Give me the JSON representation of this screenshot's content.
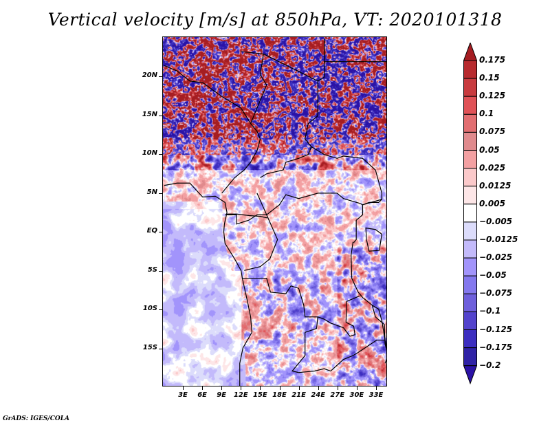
{
  "title": "Vertical velocity [m/s] at 850hPa, VT: 2020101318",
  "footer": "GrADS: IGES/COLA",
  "map": {
    "region": "Central Africa",
    "lon_range": [
      0,
      35
    ],
    "lat_range": [
      -20,
      25
    ],
    "y_axis_labels": [
      {
        "label": "20N",
        "lat": 20
      },
      {
        "label": "15N",
        "lat": 15
      },
      {
        "label": "10N",
        "lat": 10
      },
      {
        "label": "5N",
        "lat": 5
      },
      {
        "label": "EQ",
        "lat": 0
      },
      {
        "label": "5S",
        "lat": -5
      },
      {
        "label": "10S",
        "lat": -10
      },
      {
        "label": "15S",
        "lat": -15
      }
    ],
    "x_axis_labels": [
      {
        "label": "3E",
        "lon": 3
      },
      {
        "label": "6E",
        "lon": 6
      },
      {
        "label": "9E",
        "lon": 9
      },
      {
        "label": "12E",
        "lon": 12
      },
      {
        "label": "15E",
        "lon": 15
      },
      {
        "label": "18E",
        "lon": 18
      },
      {
        "label": "21E",
        "lon": 21
      },
      {
        "label": "24E",
        "lon": 24
      },
      {
        "label": "27E",
        "lon": 27
      },
      {
        "label": "30E",
        "lon": 30
      },
      {
        "label": "33E",
        "lon": 33
      }
    ]
  },
  "colorbar": {
    "labels": [
      "0.175",
      "0.15",
      "0.125",
      "0.1",
      "0.075",
      "0.05",
      "0.025",
      "0.0125",
      "0.005",
      "−0.005",
      "−0.0125",
      "−0.025",
      "−0.05",
      "−0.075",
      "−0.1",
      "−0.125",
      "−0.175",
      "−0.2"
    ],
    "levels": [
      0.175,
      0.15,
      0.125,
      0.1,
      0.075,
      0.05,
      0.025,
      0.0125,
      0.005,
      -0.005,
      -0.0125,
      -0.025,
      -0.05,
      -0.075,
      -0.1,
      -0.125,
      -0.175,
      -0.2
    ],
    "colors_top_to_bottom": [
      "#a51d22",
      "#b72a2e",
      "#c83b3f",
      "#e05257",
      "#e26e71",
      "#e08a8d",
      "#f3a0a2",
      "#fbc9ca",
      "#fde6e7",
      "#ffffff",
      "#dcdcfb",
      "#c3bafb",
      "#a294fb",
      "#8478ee",
      "#6e5fdc",
      "#5343cd",
      "#3c2ec0",
      "#2f22a6",
      "#2b12a6"
    ]
  }
}
